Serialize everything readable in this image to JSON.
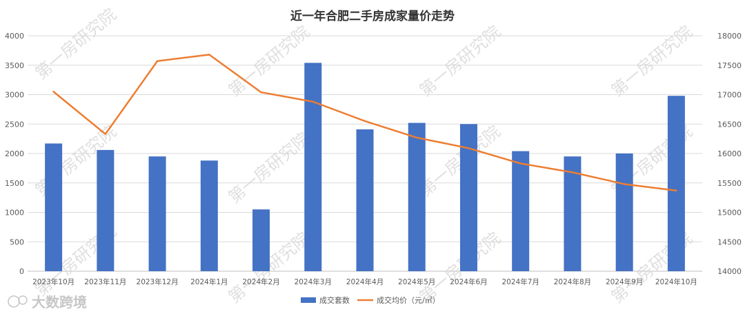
{
  "chart_data": {
    "type": "bar",
    "title": "近一年合肥二手房成家量价走势",
    "categories": [
      "2023年10月",
      "2023年11月",
      "2023年12月",
      "2024年1月",
      "2024年2月",
      "2024年3月",
      "2024年4月",
      "2024年5月",
      "2024年6月",
      "2024年7月",
      "2024年8月",
      "2024年9月",
      "2024年10月"
    ],
    "series": [
      {
        "name": "成交套数",
        "type": "bar",
        "axis": "left",
        "color": "#4472c4",
        "values": [
          2170,
          2060,
          1950,
          1880,
          1050,
          3540,
          2410,
          2520,
          2500,
          2040,
          1950,
          2000,
          2980
        ]
      },
      {
        "name": "成交均价（元/㎡）",
        "type": "line",
        "axis": "right",
        "color": "#ed7d31",
        "values": [
          17050,
          16330,
          17570,
          17680,
          17040,
          16880,
          16550,
          16270,
          16090,
          15830,
          15680,
          15480,
          15370
        ]
      }
    ],
    "y_left": {
      "min": 0,
      "max": 4000,
      "ticks": [
        "0",
        "500",
        "1000",
        "1500",
        "2000",
        "2500",
        "3000",
        "3500",
        "4000"
      ]
    },
    "y_right": {
      "min": 14000,
      "max": 18000,
      "ticks": [
        "14000",
        "14500",
        "15000",
        "15500",
        "16000",
        "16500",
        "17000",
        "17500",
        "18000"
      ]
    },
    "grid": true,
    "legend_position": "bottom",
    "watermark": "第一房研究院",
    "logo_text": "大数跨境"
  }
}
